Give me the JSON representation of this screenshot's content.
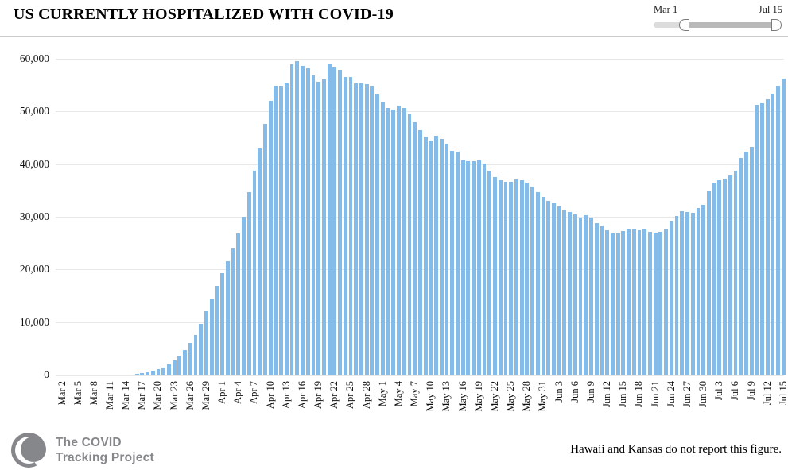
{
  "header": {
    "title": "US CURRENTLY HOSPITALIZED WITH COVID-19"
  },
  "date_slider": {
    "start_label": "Mar 1",
    "end_label": "Jul 15"
  },
  "footer": {
    "logo_line1": "The COVID",
    "logo_line2": "Tracking Project",
    "note": "Hawaii and Kansas do not report this figure."
  },
  "colors": {
    "bar": "#85bbe8",
    "gridline": "#e8e8e8",
    "logo_gray": "#85878a",
    "slider_track": "#dcdcdc",
    "slider_range": "#b9b9b9"
  },
  "chart_data": {
    "type": "bar",
    "title": "US CURRENTLY HOSPITALIZED WITH COVID-19",
    "x_start": "Mar 2",
    "x_end": "Jul 15",
    "x_tick_every": 3,
    "x_tick_labels": [
      "Mar 2",
      "Mar 5",
      "Mar 8",
      "Mar 11",
      "Mar 14",
      "Mar 17",
      "Mar 20",
      "Mar 23",
      "Mar 26",
      "Mar 29",
      "Apr 1",
      "Apr 4",
      "Apr 7",
      "Apr 10",
      "Apr 13",
      "Apr 16",
      "Apr 19",
      "Apr 22",
      "Apr 25",
      "Apr 28",
      "May 1",
      "May 4",
      "May 7",
      "May 10",
      "May 13",
      "May 16",
      "May 19",
      "May 22",
      "May 25",
      "May 28",
      "May 31",
      "Jun 3",
      "Jun 6",
      "Jun 9",
      "Jun 12",
      "Jun 15",
      "Jun 18",
      "Jun 21",
      "Jun 24",
      "Jun 27",
      "Jun 30",
      "Jul 3",
      "Jul 6",
      "Jul 9",
      "Jul 12",
      "Jul 15"
    ],
    "y_tick_labels": [
      "0",
      "10,000",
      "20,000",
      "30,000",
      "40,000",
      "50,000",
      "60,000"
    ],
    "ylim": [
      0,
      60000
    ],
    "grid": true,
    "legend": false,
    "values": [
      0,
      0,
      0,
      0,
      0,
      0,
      0,
      0,
      0,
      0,
      0,
      0,
      0,
      0,
      150,
      300,
      500,
      700,
      1000,
      1400,
      1900,
      2700,
      3600,
      4700,
      6000,
      7500,
      9600,
      12000,
      14400,
      16900,
      19300,
      21500,
      24000,
      26800,
      30000,
      34700,
      38800,
      43000,
      47600,
      52000,
      54800,
      54900,
      55400,
      59000,
      59500,
      58700,
      58200,
      56900,
      55700,
      56100,
      59100,
      58300,
      57900,
      56500,
      56600,
      55300,
      55300,
      55200,
      54800,
      53200,
      51800,
      50600,
      50300,
      51100,
      50600,
      49500,
      48000,
      46500,
      45300,
      44500,
      45400,
      44800,
      43800,
      42500,
      42400,
      40700,
      40500,
      40600,
      40700,
      40100,
      38700,
      37500,
      37000,
      36700,
      36700,
      37100,
      36900,
      36500,
      35700,
      34700,
      33700,
      33000,
      32500,
      31900,
      31300,
      30900,
      30500,
      29900,
      30300,
      29900,
      28800,
      28200,
      27400,
      26900,
      26800,
      27300,
      27600,
      27600,
      27400,
      27700,
      27100,
      27000,
      27200,
      27800,
      29300,
      30200,
      31100,
      30900,
      30800,
      31600,
      32200,
      35000,
      36300,
      36900,
      37300,
      37800,
      38700,
      41100,
      42400,
      43300,
      51200,
      51500,
      52300,
      53300,
      54800,
      56200
    ]
  }
}
